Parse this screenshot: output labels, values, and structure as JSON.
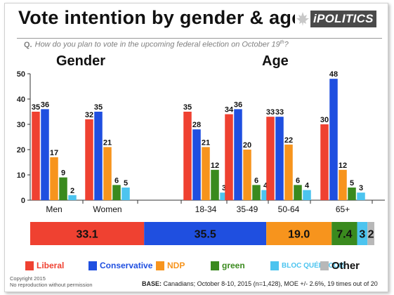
{
  "header": {
    "title": "Vote intention by gender & age",
    "logo_text": "iPOLITICS",
    "question_prefix": "Q.",
    "question": "How do you plan to vote in the upcoming federal election on October 19",
    "question_sup": "th",
    "question_suffix": "?"
  },
  "sections": {
    "gender": "Gender",
    "age": "Age"
  },
  "colors": {
    "liberal": "#ef4131",
    "conservative": "#1f4fe0",
    "ndp": "#f7941d",
    "green": "#3a8a1e",
    "bloc": "#4cc4ef",
    "other": "#b8b8b8"
  },
  "chart_data": [
    {
      "type": "bar",
      "categories": [
        "Men",
        "Women",
        "18-34",
        "35-49",
        "50-64",
        "65+"
      ],
      "ylim": [
        0,
        50
      ],
      "yticks": [
        0,
        10,
        20,
        30,
        40,
        50
      ],
      "series": [
        {
          "name": "Liberal",
          "values": [
            35,
            32,
            35,
            34,
            33,
            30
          ]
        },
        {
          "name": "Conservative",
          "values": [
            36,
            35,
            28,
            36,
            33,
            48
          ]
        },
        {
          "name": "NDP",
          "values": [
            17,
            21,
            21,
            20,
            22,
            12
          ]
        },
        {
          "name": "green",
          "values": [
            9,
            6,
            12,
            6,
            6,
            5
          ]
        },
        {
          "name": "BLOC QUÉBÉCOIS",
          "values": [
            2,
            5,
            3,
            4,
            4,
            3
          ]
        }
      ],
      "data_labels": [
        [
          "35",
          "36",
          "17",
          "9",
          "2"
        ],
        [
          "32",
          "35",
          "21",
          "6",
          "5"
        ],
        [
          "35",
          "28",
          "21",
          "12",
          "3"
        ],
        [
          "34",
          "36",
          "20",
          "6",
          "4"
        ],
        [
          "33",
          "33",
          "22",
          "6",
          "4"
        ],
        [
          "30",
          "48",
          "12",
          "5",
          "3"
        ]
      ]
    },
    {
      "type": "bar",
      "orientation": "stacked-horizontal",
      "series": [
        {
          "name": "Liberal",
          "value": 33.1,
          "label": "33.1"
        },
        {
          "name": "Conservative",
          "value": 35.5,
          "label": "35.5"
        },
        {
          "name": "NDP",
          "value": 19.0,
          "label": "19.0"
        },
        {
          "name": "green",
          "value": 7.4,
          "label": "7.4"
        },
        {
          "name": "BLOC QUÉBÉCOIS",
          "value": 3,
          "label": "3"
        },
        {
          "name": "Other",
          "value": 2,
          "label": "2"
        }
      ]
    }
  ],
  "legend": [
    {
      "key": "liberal",
      "label": "Liberal"
    },
    {
      "key": "conservative",
      "label": "Conservative"
    },
    {
      "key": "ndp",
      "label": "NDP"
    },
    {
      "key": "green",
      "label": "green"
    },
    {
      "key": "bloc",
      "label": "BLOC QUÉBÉCOIS"
    },
    {
      "key": "other",
      "label": "Other"
    }
  ],
  "footer": {
    "copyright": "Copyright 2015",
    "notice": "No reproduction without permission",
    "base_label": "BASE:",
    "base_text": "Canadians; October 8-10, 2015 (n=1,428), MOE +/- 2.6%, 19 times out of 20"
  }
}
